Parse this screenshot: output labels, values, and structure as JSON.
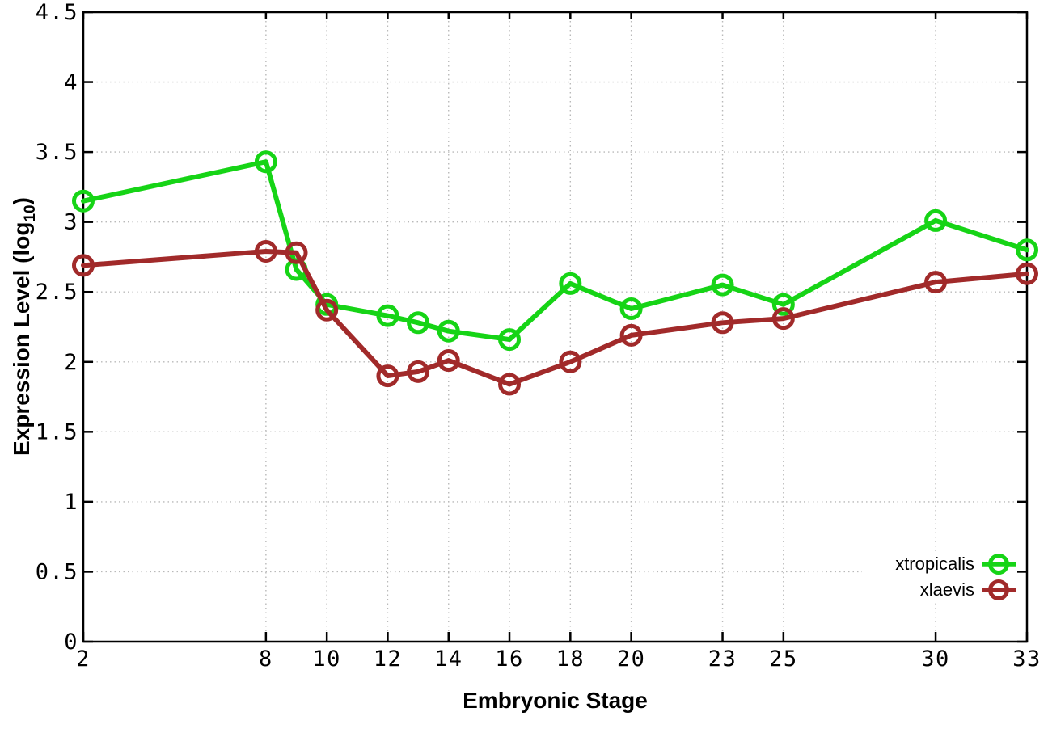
{
  "chart_data": {
    "type": "line",
    "title": "",
    "xlabel": "Embryonic Stage",
    "ylabel": "Expression Level (log10)",
    "ylabel_parts": {
      "base": "Expression Level (log",
      "sub": "10",
      "end": ")"
    },
    "x": [
      2,
      8,
      9,
      10,
      12,
      13,
      14,
      16,
      18,
      20,
      23,
      25,
      30,
      33
    ],
    "xticks": [
      2,
      8,
      10,
      12,
      14,
      16,
      18,
      20,
      23,
      25,
      30,
      33
    ],
    "yticks": [
      0,
      0.5,
      1,
      1.5,
      2,
      2.5,
      3,
      3.5,
      4,
      4.5
    ],
    "xlim": [
      2,
      33
    ],
    "ylim": [
      0,
      4.5
    ],
    "grid": true,
    "legend": {
      "position": "inside-bottom-right",
      "entries": [
        "xtropicalis",
        "xlaevis"
      ]
    },
    "series": [
      {
        "name": "xtropicalis",
        "color": "#16d416",
        "marker": "open-circle",
        "values": [
          3.15,
          3.43,
          2.66,
          2.41,
          2.33,
          2.28,
          2.22,
          2.16,
          2.56,
          2.38,
          2.55,
          2.41,
          3.01,
          2.8
        ]
      },
      {
        "name": "xlaevis",
        "color": "#a12a2a",
        "marker": "open-circle",
        "values": [
          2.69,
          2.79,
          2.78,
          2.37,
          1.9,
          1.93,
          2.01,
          1.84,
          2.0,
          2.19,
          2.28,
          2.31,
          2.57,
          2.63
        ]
      }
    ],
    "axis_color": "#000000",
    "grid_color": "#b9b9b9",
    "background": "#ffffff"
  }
}
